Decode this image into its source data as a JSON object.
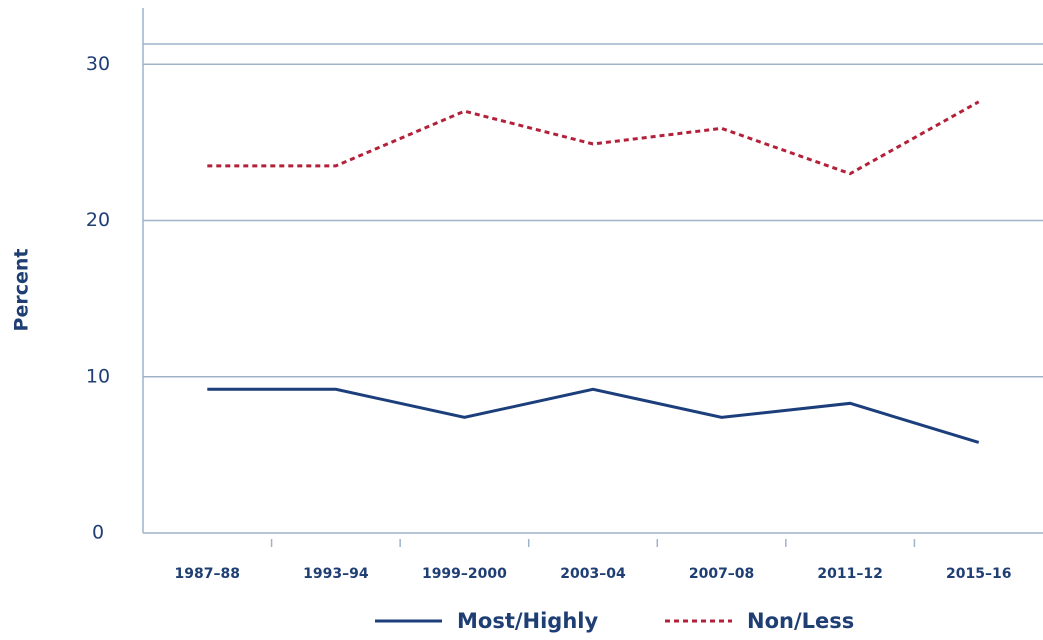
{
  "chart_data": {
    "type": "line",
    "categories": [
      "1987–88",
      "1993–94",
      "1999–2000",
      "2003–04",
      "2007–08",
      "2011–12",
      "2015–16"
    ],
    "series": [
      {
        "name": "Most/Highly",
        "color": "#1c3f7c",
        "dash": false,
        "values": [
          9.2,
          9.2,
          7.4,
          9.2,
          7.4,
          8.3,
          5.8
        ]
      },
      {
        "name": "Non/Less",
        "color": "#b3203a",
        "dash": true,
        "values": [
          23.5,
          23.5,
          27.0,
          24.9,
          25.9,
          23.0,
          27.6
        ]
      }
    ],
    "y_label": "Percent",
    "ylim": [
      0,
      31.3
    ],
    "yticks": [
      0,
      10,
      20,
      30
    ],
    "grid": true
  }
}
